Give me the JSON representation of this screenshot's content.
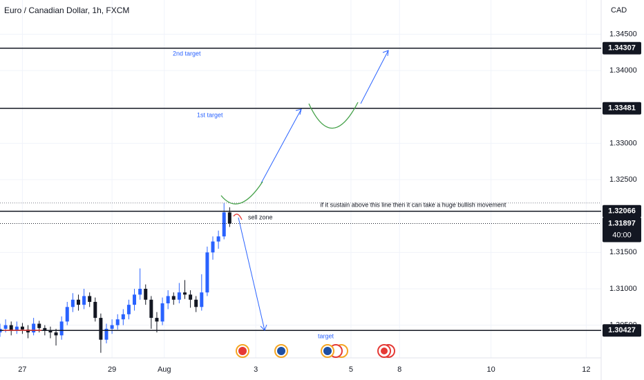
{
  "chart_data": {
    "type": "candlestick",
    "title": "Euro / Canadian Dollar, 1h, FXCM",
    "y_axis_label": "CAD",
    "x": [
      0,
      3,
      6,
      9,
      12,
      15,
      18,
      21,
      24,
      27,
      30,
      33,
      36,
      39,
      42,
      45,
      48,
      51,
      54,
      57,
      60,
      63,
      66,
      69,
      72,
      75,
      78,
      81,
      84,
      87,
      90,
      93,
      96,
      99,
      102,
      105,
      108,
      111,
      114,
      117,
      120,
      123
    ],
    "open": [
      1.304,
      1.3045,
      1.305,
      1.3042,
      1.3048,
      1.3044,
      1.304,
      1.3052,
      1.3046,
      1.3043,
      1.304,
      1.3036,
      1.3055,
      1.3075,
      1.3085,
      1.3078,
      1.309,
      1.3082,
      1.306,
      1.303,
      1.3045,
      1.305,
      1.3058,
      1.3065,
      1.3078,
      1.3092,
      1.31,
      1.3085,
      1.306,
      1.3055,
      1.308,
      1.309,
      1.3085,
      1.3095,
      1.3092,
      1.3085,
      1.3075,
      1.3095,
      1.315,
      1.3165,
      1.3172,
      1.3205
    ],
    "high": [
      1.3052,
      1.3058,
      1.3055,
      1.3055,
      1.3053,
      1.305,
      1.306,
      1.3056,
      1.305,
      1.3048,
      1.3045,
      1.3062,
      1.3082,
      1.3094,
      1.3092,
      1.31,
      1.3095,
      1.3088,
      1.3066,
      1.3052,
      1.3058,
      1.3065,
      1.3072,
      1.3085,
      1.31,
      1.3128,
      1.3106,
      1.309,
      1.3068,
      1.3088,
      1.3098,
      1.3095,
      1.3108,
      1.3112,
      1.3098,
      1.309,
      1.312,
      1.3158,
      1.3172,
      1.318,
      1.3218,
      1.3212
    ],
    "low": [
      1.3034,
      1.304,
      1.3036,
      1.3038,
      1.3038,
      1.3032,
      1.3036,
      1.304,
      1.3036,
      1.3032,
      1.3022,
      1.303,
      1.305,
      1.3068,
      1.307,
      1.3072,
      1.3075,
      1.3055,
      1.3012,
      1.3025,
      1.3038,
      1.3044,
      1.305,
      1.3058,
      1.307,
      1.3085,
      1.3078,
      1.3045,
      1.304,
      1.305,
      1.3072,
      1.3078,
      1.308,
      1.3086,
      1.3074,
      1.3068,
      1.307,
      1.309,
      1.314,
      1.3155,
      1.3168,
      1.3185
    ],
    "close": [
      1.3045,
      1.305,
      1.3042,
      1.3048,
      1.3044,
      1.304,
      1.3052,
      1.3046,
      1.3043,
      1.304,
      1.3036,
      1.3055,
      1.3075,
      1.3085,
      1.3078,
      1.309,
      1.3082,
      1.306,
      1.303,
      1.3045,
      1.305,
      1.3058,
      1.3065,
      1.3078,
      1.3092,
      1.31,
      1.3085,
      1.306,
      1.3055,
      1.308,
      1.309,
      1.3085,
      1.3095,
      1.3092,
      1.3085,
      1.3075,
      1.3095,
      1.315,
      1.3165,
      1.3172,
      1.3205,
      1.31897
    ],
    "up_color": "#2962ff",
    "down_color": "#131722",
    "xlim": [
      0,
      322
    ],
    "xticks": [
      {
        "value": 12,
        "label": "27"
      },
      {
        "value": 60,
        "label": "29"
      },
      {
        "value": 88,
        "label": "Aug"
      },
      {
        "value": 137,
        "label": "3"
      },
      {
        "value": 188,
        "label": "5"
      },
      {
        "value": 214,
        "label": "8"
      },
      {
        "value": 263,
        "label": "10"
      },
      {
        "value": 314,
        "label": "12"
      }
    ],
    "ylim": [
      1.3005,
      1.3497
    ],
    "yticks": [
      {
        "value": 1.345,
        "label": "1.34500"
      },
      {
        "value": 1.34,
        "label": "1.34000"
      },
      {
        "value": 1.33,
        "label": "1.33000"
      },
      {
        "value": 1.325,
        "label": "1.32500"
      },
      {
        "value": 1.315,
        "label": "1.31500"
      },
      {
        "value": 1.31,
        "label": "1.31000"
      },
      {
        "value": 1.305,
        "label": "1.30500"
      }
    ],
    "grid": true,
    "levels": [
      1.34307,
      1.33481,
      1.32066,
      1.30427
    ],
    "dotted_level": 1.3218,
    "last_price": 1.31897,
    "countdown": "40:00",
    "annotations": [
      "2nd target",
      "1st target",
      "if it sustain above this line then it can take a huge bullish movement",
      "sell zone",
      "target"
    ]
  }
}
